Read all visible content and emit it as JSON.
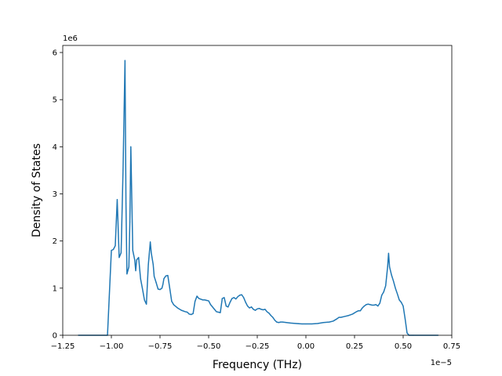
{
  "chart_data": {
    "type": "line",
    "xlabel": "Frequency (THz)",
    "ylabel": "Density of States",
    "x_offset_label": "1e−5",
    "y_offset_label": "1e6",
    "xlim": [
      -1.25,
      0.75
    ],
    "ylim": [
      0,
      6.15
    ],
    "x_ticks": [
      -1.25,
      -1.0,
      -0.75,
      -0.5,
      -0.25,
      0.0,
      0.25,
      0.5,
      0.75
    ],
    "x_tick_labels": [
      "−1.25",
      "−1.00",
      "−0.75",
      "−0.50",
      "−0.25",
      "0.00",
      "0.25",
      "0.50",
      "0.75"
    ],
    "y_ticks": [
      0,
      1,
      2,
      3,
      4,
      5,
      6
    ],
    "y_tick_labels": [
      "0",
      "1",
      "2",
      "3",
      "4",
      "5",
      "6"
    ],
    "grid": false,
    "line_color": "#1f77b4",
    "series": [
      {
        "x": [
          -1.17,
          -1.02,
          -1.0,
          -0.99,
          -0.98,
          -0.97,
          -0.96,
          -0.95,
          -0.94,
          -0.93,
          -0.925,
          -0.92,
          -0.91,
          -0.905,
          -0.9,
          -0.89,
          -0.885,
          -0.88,
          -0.875,
          -0.87,
          -0.86,
          -0.85,
          -0.84,
          -0.83,
          -0.82,
          -0.81,
          -0.8,
          -0.795,
          -0.785,
          -0.78,
          -0.77,
          -0.76,
          -0.75,
          -0.74,
          -0.735,
          -0.73,
          -0.72,
          -0.71,
          -0.7,
          -0.69,
          -0.68,
          -0.66,
          -0.64,
          -0.62,
          -0.61,
          -0.6,
          -0.59,
          -0.58,
          -0.57,
          -0.56,
          -0.55,
          -0.53,
          -0.52,
          -0.51,
          -0.5,
          -0.49,
          -0.47,
          -0.46,
          -0.45,
          -0.44,
          -0.43,
          -0.42,
          -0.41,
          -0.4,
          -0.39,
          -0.38,
          -0.37,
          -0.36,
          -0.35,
          -0.34,
          -0.33,
          -0.32,
          -0.31,
          -0.3,
          -0.29,
          -0.28,
          -0.27,
          -0.26,
          -0.25,
          -0.24,
          -0.23,
          -0.22,
          -0.21,
          -0.2,
          -0.19,
          -0.18,
          -0.17,
          -0.16,
          -0.15,
          -0.14,
          -0.13,
          -0.12,
          -0.1,
          -0.08,
          -0.05,
          -0.02,
          0.0,
          0.03,
          0.06,
          0.09,
          0.12,
          0.14,
          0.16,
          0.17,
          0.18,
          0.2,
          0.22,
          0.24,
          0.26,
          0.27,
          0.28,
          0.29,
          0.3,
          0.31,
          0.32,
          0.33,
          0.34,
          0.35,
          0.36,
          0.37,
          0.38,
          0.39,
          0.4,
          0.41,
          0.415,
          0.42,
          0.425,
          0.43,
          0.44,
          0.45,
          0.46,
          0.47,
          0.48,
          0.49,
          0.5,
          0.51,
          0.52,
          0.53,
          0.54,
          0.55,
          0.68
        ],
        "y": [
          0,
          0,
          1.8,
          1.82,
          1.9,
          2.88,
          1.65,
          1.75,
          3.5,
          5.83,
          2.8,
          1.3,
          1.45,
          2.4,
          4.0,
          1.8,
          1.7,
          1.6,
          1.37,
          1.6,
          1.65,
          1.2,
          0.98,
          0.75,
          0.66,
          1.5,
          1.98,
          1.75,
          1.5,
          1.25,
          1.12,
          0.98,
          0.97,
          1.0,
          1.08,
          1.2,
          1.26,
          1.27,
          1.0,
          0.72,
          0.65,
          0.58,
          0.53,
          0.5,
          0.49,
          0.45,
          0.44,
          0.46,
          0.72,
          0.83,
          0.78,
          0.75,
          0.75,
          0.74,
          0.73,
          0.65,
          0.55,
          0.5,
          0.49,
          0.48,
          0.78,
          0.8,
          0.62,
          0.6,
          0.7,
          0.78,
          0.8,
          0.77,
          0.82,
          0.85,
          0.86,
          0.8,
          0.7,
          0.62,
          0.58,
          0.6,
          0.55,
          0.53,
          0.56,
          0.57,
          0.55,
          0.54,
          0.55,
          0.5,
          0.47,
          0.42,
          0.38,
          0.32,
          0.28,
          0.27,
          0.28,
          0.28,
          0.27,
          0.26,
          0.25,
          0.24,
          0.24,
          0.24,
          0.25,
          0.27,
          0.28,
          0.3,
          0.35,
          0.38,
          0.38,
          0.4,
          0.42,
          0.45,
          0.5,
          0.52,
          0.52,
          0.58,
          0.62,
          0.65,
          0.66,
          0.65,
          0.64,
          0.64,
          0.65,
          0.62,
          0.68,
          0.85,
          0.92,
          1.05,
          1.25,
          1.45,
          1.74,
          1.45,
          1.28,
          1.15,
          1.0,
          0.88,
          0.75,
          0.7,
          0.62,
          0.35,
          0.05,
          0,
          0,
          0,
          0
        ]
      }
    ]
  }
}
